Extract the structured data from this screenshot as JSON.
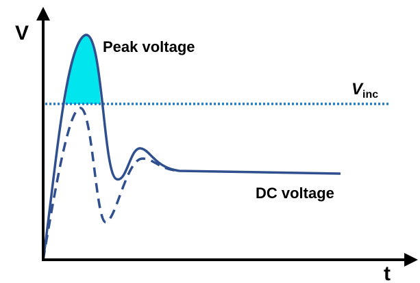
{
  "axes": {
    "y_label": "V",
    "x_label": "t"
  },
  "annotations": {
    "peak": "Peak voltage",
    "dc": "DC voltage",
    "threshold": {
      "symbol": "V",
      "subscript": "inc"
    }
  }
}
